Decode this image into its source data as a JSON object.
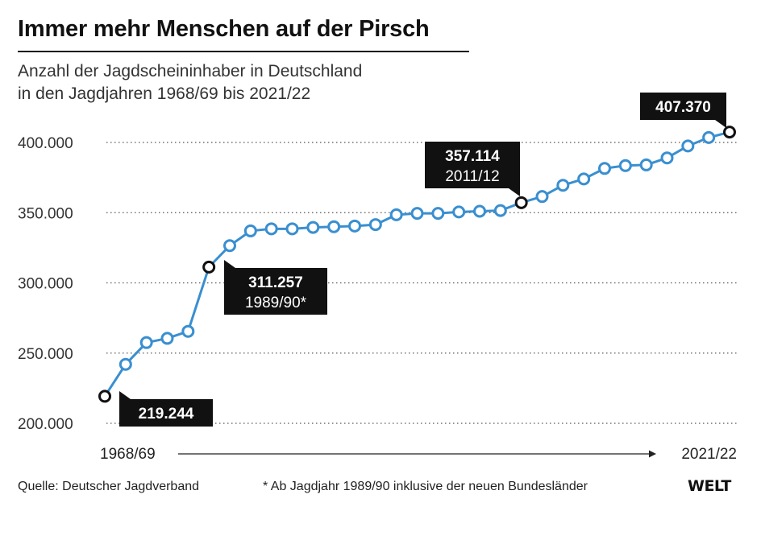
{
  "title": "Immer mehr Menschen auf der Pirsch",
  "subtitle_line1": "Anzahl der Jagdscheininhaber in Deutschland",
  "subtitle_line2": "in den Jagdjahren 1968/69 bis 2021/22",
  "source": "Quelle: Deutscher Jagdverband",
  "footnote": "* Ab Jagdjahr 1989/90 inklusive der neuen Bundesländer",
  "logo": "WELT",
  "colors": {
    "line": "#3a8fd0",
    "highlight": "#111111",
    "callout_bg": "#111111",
    "grid": "#555555"
  },
  "chart_data": {
    "type": "line",
    "title": "Immer mehr Menschen auf der Pirsch",
    "xlabel": "",
    "ylabel": "",
    "x_start_label": "1968/69",
    "x_end_label": "2021/22",
    "yticks": [
      200000,
      250000,
      300000,
      350000,
      400000
    ],
    "ytick_labels": [
      "200.000",
      "250.000",
      "300.000",
      "350.000",
      "400.000"
    ],
    "ylim": [
      200000,
      410000
    ],
    "grid": true,
    "values": [
      219244,
      242000,
      257500,
      260500,
      265500,
      311257,
      326500,
      337000,
      338500,
      338500,
      339500,
      340000,
      340500,
      341500,
      348500,
      349500,
      349500,
      350500,
      351000,
      351500,
      357114,
      361500,
      369500,
      374000,
      381500,
      383500,
      384000,
      389000,
      397500,
      403500,
      407370
    ],
    "callouts": [
      {
        "index": 0,
        "value_label": "219.244",
        "sub_label": ""
      },
      {
        "index": 5,
        "value_label": "311.257",
        "sub_label": "1989/90*"
      },
      {
        "index": 20,
        "value_label": "357.114",
        "sub_label": "2011/12"
      },
      {
        "index": 30,
        "value_label": "407.370",
        "sub_label": ""
      }
    ]
  }
}
